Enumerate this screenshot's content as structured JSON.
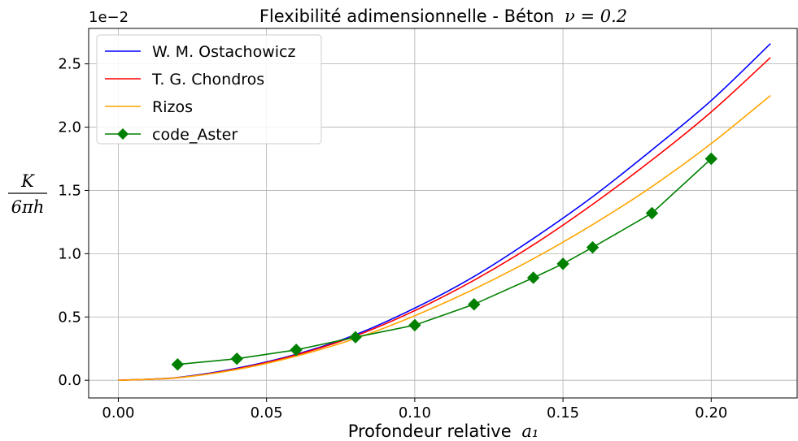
{
  "chart_data": {
    "type": "line",
    "title": "Flexibilité adimensionnelle - Béton",
    "title_math": "ν = 0.2",
    "xlabel": "Profondeur relative",
    "xlabel_math": "a₁",
    "ylabel_numerator": "K",
    "ylabel_denominator": "6πh",
    "y_offset_label": "1e−2",
    "xlim": [
      -0.01,
      0.229
    ],
    "ylim": [
      -0.0014,
      0.0278
    ],
    "x_ticks": [
      0.0,
      0.05,
      0.1,
      0.15,
      0.2
    ],
    "x_tick_labels": [
      "0.00",
      "0.05",
      "0.10",
      "0.15",
      "0.20"
    ],
    "y_ticks": [
      0.0,
      0.005,
      0.01,
      0.015,
      0.02,
      0.025
    ],
    "y_tick_labels": [
      "0.0",
      "0.5",
      "1.0",
      "1.5",
      "2.0",
      "2.5"
    ],
    "grid": true,
    "legend_position": "top-left",
    "series": [
      {
        "name": "W. M. Ostachowicz",
        "color": "#0000ff",
        "marker": "none",
        "x": [
          0.0,
          0.02,
          0.04,
          0.06,
          0.08,
          0.1,
          0.12,
          0.14,
          0.16,
          0.18,
          0.2,
          0.22
        ],
        "y": [
          0.0,
          0.00022,
          0.00095,
          0.00205,
          0.0036,
          0.0057,
          0.0082,
          0.0112,
          0.0145,
          0.0182,
          0.0221,
          0.0266
        ]
      },
      {
        "name": "T. G. Chondros",
        "color": "#ff0000",
        "marker": "none",
        "x": [
          0.0,
          0.02,
          0.04,
          0.06,
          0.08,
          0.1,
          0.12,
          0.14,
          0.16,
          0.18,
          0.2,
          0.22
        ],
        "y": [
          0.0,
          0.0002,
          0.0009,
          0.002,
          0.0035,
          0.0055,
          0.0079,
          0.0107,
          0.0139,
          0.0174,
          0.0212,
          0.0255
        ]
      },
      {
        "name": "Rizos",
        "color": "#ffa500",
        "marker": "none",
        "x": [
          0.0,
          0.02,
          0.04,
          0.06,
          0.08,
          0.1,
          0.12,
          0.14,
          0.16,
          0.18,
          0.2,
          0.22
        ],
        "y": [
          0.0,
          0.0002,
          0.00085,
          0.0019,
          0.0033,
          0.0051,
          0.0072,
          0.0096,
          0.0123,
          0.0153,
          0.0187,
          0.0225
        ]
      },
      {
        "name": "code_Aster",
        "color": "#008000",
        "marker": "diamond",
        "x": [
          0.02,
          0.04,
          0.06,
          0.08,
          0.1,
          0.12,
          0.14,
          0.15,
          0.16,
          0.18,
          0.2
        ],
        "y": [
          0.00125,
          0.0017,
          0.0024,
          0.0034,
          0.00435,
          0.006,
          0.0081,
          0.0092,
          0.0105,
          0.0132,
          0.0175
        ]
      }
    ]
  }
}
